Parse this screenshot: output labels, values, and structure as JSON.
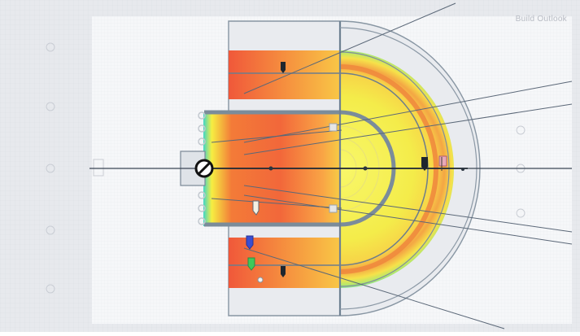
{
  "app": {
    "watermark_text": "Build Outlook"
  },
  "colors": {
    "frame": "#e2e5ea",
    "paper": "#f4f5f7",
    "wall_line": "#7c8a99",
    "heat_hot": "#ef5a33",
    "heat_warm": "#fdb643",
    "heat_mid": "#f6ee42",
    "heat_cool": "#2fd6c4",
    "beam_line": "#566477"
  },
  "icons": {
    "source": "no-entry-source-icon",
    "markers": [
      "dark-tag-icon",
      "dark-tag-icon",
      "dark-tag-icon",
      "dark-tag-icon",
      "blue-pin-icon",
      "green-pin-icon",
      "pink-flag-icon"
    ]
  }
}
